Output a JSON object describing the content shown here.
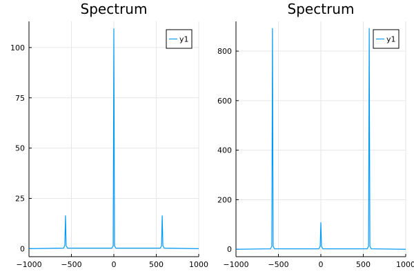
{
  "chart_data": [
    {
      "type": "line",
      "title": "Spectrum",
      "xlabel": "",
      "ylabel": "",
      "xlim": [
        -1000,
        1000
      ],
      "ylim": [
        -4,
        113
      ],
      "xticks": [
        -1000,
        -500,
        0,
        500,
        1000
      ],
      "yticks": [
        0,
        25,
        50,
        75,
        100
      ],
      "grid": true,
      "legend": {
        "position": "top-right",
        "entries": [
          "y1"
        ]
      },
      "series": [
        {
          "name": "y1",
          "color": "#009af9",
          "baseline": 0,
          "peaks": [
            {
              "x": -570,
              "y": 16.5
            },
            {
              "x": 0,
              "y": 109.5
            },
            {
              "x": 570,
              "y": 16.5
            }
          ]
        }
      ]
    },
    {
      "type": "line",
      "title": "Spectrum",
      "xlabel": "",
      "ylabel": "",
      "xlim": [
        -1000,
        1000
      ],
      "ylim": [
        -30,
        920
      ],
      "xticks": [
        -1000,
        -500,
        0,
        500,
        1000
      ],
      "yticks": [
        0,
        200,
        400,
        600,
        800
      ],
      "grid": true,
      "legend": {
        "position": "top-right",
        "entries": [
          "y1"
        ]
      },
      "series": [
        {
          "name": "y1",
          "color": "#009af9",
          "baseline": 0,
          "peaks": [
            {
              "x": -570,
              "y": 893
            },
            {
              "x": 0,
              "y": 109
            },
            {
              "x": 570,
              "y": 893
            }
          ]
        }
      ]
    }
  ]
}
